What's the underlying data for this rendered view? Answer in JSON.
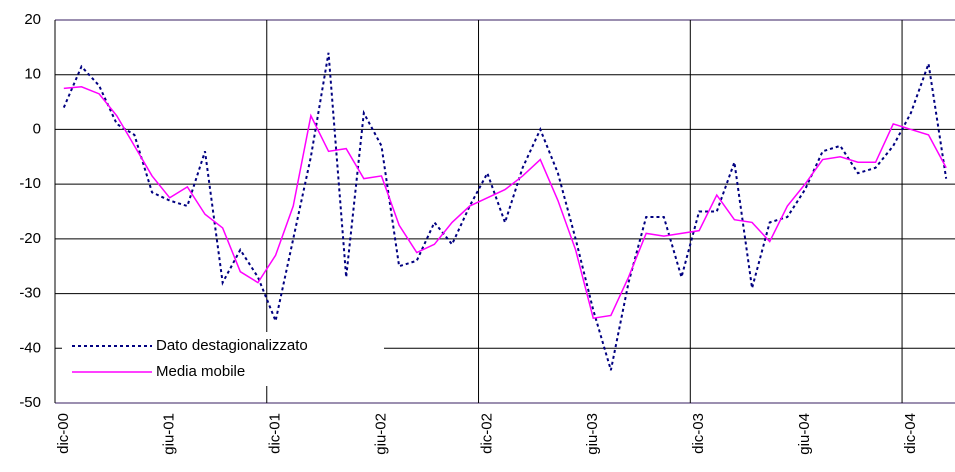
{
  "chart_data": {
    "type": "line",
    "categories": [
      "dic-00",
      null,
      null,
      null,
      null,
      null,
      "giu-01",
      null,
      null,
      null,
      null,
      null,
      "dic-01",
      null,
      null,
      null,
      null,
      null,
      "giu-02",
      null,
      null,
      null,
      null,
      null,
      "dic-02",
      null,
      null,
      null,
      null,
      null,
      "giu-03",
      null,
      null,
      null,
      null,
      null,
      "dic-03",
      null,
      null,
      null,
      null,
      null,
      "giu-04",
      null,
      null,
      null,
      null,
      null,
      "dic-04",
      null,
      null
    ],
    "series": [
      {
        "name": "Dato destagionalizzato",
        "color": "#000080",
        "values": [
          4,
          11.5,
          8,
          1,
          -1,
          -11.5,
          -13,
          -14,
          -4,
          -28,
          -22,
          -27,
          -35,
          -20,
          -5,
          14,
          -27,
          3,
          -3,
          -25,
          -24,
          -17,
          -21,
          -14,
          -8,
          -17,
          -7,
          0,
          -8,
          -20,
          -33,
          -44,
          -28,
          -16,
          -16,
          -27,
          -15,
          -15,
          -6,
          -29,
          -17,
          -16,
          -11,
          -4,
          -3,
          -8,
          -7,
          -3,
          3,
          12,
          -9
        ]
      },
      {
        "name": "Media mobile",
        "color": "#ff00ff",
        "values": [
          7.5,
          7.8,
          6.5,
          2.5,
          -3,
          -8.5,
          -12.5,
          -10.5,
          -15.5,
          -18,
          -26,
          -28,
          -23,
          -14,
          2.5,
          -4,
          -3.5,
          -9,
          -8.5,
          -17.5,
          -22.5,
          -21,
          -17,
          -14,
          -12.5,
          -11,
          -8.5,
          -5.5,
          -13,
          -22,
          -34.5,
          -34,
          -27,
          -19,
          -19.5,
          -19,
          -18.5,
          -12,
          -16.5,
          -17,
          -20.5,
          -14,
          -10,
          -5.5,
          -5,
          -6,
          -6,
          1,
          0,
          -1,
          -7
        ]
      }
    ],
    "ylim": [
      -50,
      20
    ],
    "yticks": [
      -50,
      -40,
      -30,
      -20,
      -10,
      0,
      10,
      20
    ],
    "grid": true
  }
}
